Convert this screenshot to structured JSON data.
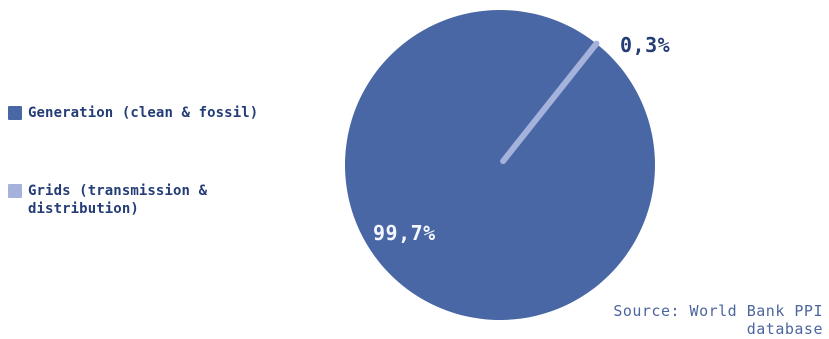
{
  "chart_data": {
    "type": "pie",
    "categories": [
      "Generation (clean & fossil)",
      "Grids (transmission & distribution)"
    ],
    "values": [
      99.7,
      0.3
    ],
    "value_labels": [
      "99,7%",
      "0,3%"
    ],
    "colors": [
      "#4a67a5",
      "#a5b2db"
    ],
    "label_colors": [
      "#f4f7ff",
      "#243d76"
    ],
    "legend_placement": "left",
    "title": "",
    "source": "Source: World Bank PPI\ndatabase"
  },
  "legend": {
    "items": [
      {
        "label": "Generation (clean & fossil)",
        "color": "#4a67a5"
      },
      {
        "label": "Grids (transmission &\ndistribution)",
        "color": "#a5b2db"
      }
    ]
  },
  "source_text": "Source: World Bank PPI\ndatabase"
}
